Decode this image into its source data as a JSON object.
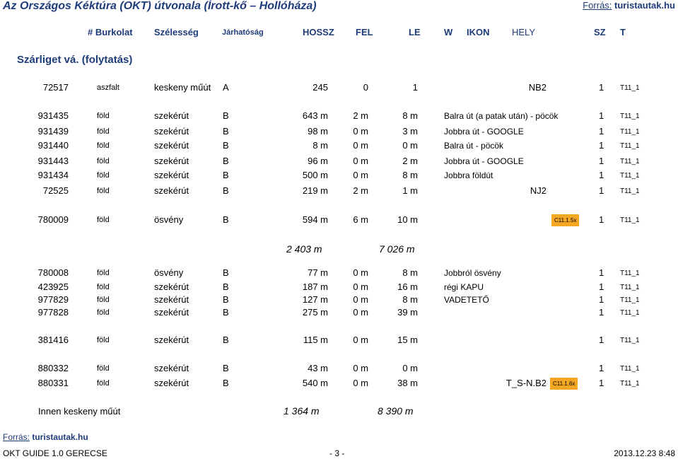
{
  "header": {
    "title": "Az Országos Kéktúra (OKT) útvonala (Írott-kő – Hollóháza)",
    "source_label": "Forrás:",
    "source_value": "turistautak.hu"
  },
  "columns": {
    "id": "# Burkolat",
    "width": "Szélesség",
    "pass": "Járhatóság",
    "len": "HOSSZ",
    "up": "FEL",
    "down": "LE",
    "w": "W",
    "ikon": "IKON",
    "hely": "HELY",
    "sz": "SZ",
    "t": "T"
  },
  "section_title": "Szárliget vá. (folytatás)",
  "rows": [
    {
      "id": "72517",
      "surf": "aszfalt",
      "width": "keskeny műút",
      "pass": "A",
      "len": "245",
      "up": "0",
      "down": "1",
      "desc": "",
      "descR": "NB2",
      "badge": "",
      "sz": "1",
      "t": "T11_1"
    },
    {
      "id": "931435",
      "surf": "föld",
      "width": "szekérút",
      "pass": "B",
      "len": "643 m",
      "up": "2 m",
      "down": "8 m",
      "desc": "Balra út (a patak után) - pöcök",
      "descR": "",
      "badge": "",
      "sz": "1",
      "t": "T11_1"
    },
    {
      "id": "931439",
      "surf": "föld",
      "width": "szekérút",
      "pass": "B",
      "len": "98 m",
      "up": "0 m",
      "down": "3 m",
      "desc": "Jobbra út - GOOGLE",
      "descR": "",
      "badge": "",
      "sz": "1",
      "t": "T11_1"
    },
    {
      "id": "931440",
      "surf": "föld",
      "width": "szekérút",
      "pass": "B",
      "len": "8 m",
      "up": "0 m",
      "down": "0 m",
      "desc": "Balra út - pöcök",
      "descR": "",
      "badge": "",
      "sz": "1",
      "t": "T11_1"
    },
    {
      "id": "931443",
      "surf": "föld",
      "width": "szekérút",
      "pass": "B",
      "len": "96 m",
      "up": "0 m",
      "down": "2 m",
      "desc": "Jobbra út - GOOGLE",
      "descR": "",
      "badge": "",
      "sz": "1",
      "t": "T11_1"
    },
    {
      "id": "931434",
      "surf": "föld",
      "width": "szekérút",
      "pass": "B",
      "len": "500 m",
      "up": "0 m",
      "down": "8 m",
      "desc": "Jobbra földút",
      "descR": "",
      "badge": "",
      "sz": "1",
      "t": "T11_1"
    },
    {
      "id": "72525",
      "surf": "föld",
      "width": "szekérút",
      "pass": "B",
      "len": "219 m",
      "up": "2 m",
      "down": "1 m",
      "desc": "",
      "descR": "NJ2",
      "badge": "",
      "sz": "1",
      "t": "T11_1"
    },
    {
      "id": "780009",
      "surf": "föld",
      "width": "ösvény",
      "pass": "B",
      "len": "594 m",
      "up": "6 m",
      "down": "10 m",
      "desc": "",
      "descR": "",
      "badge": "C11.1.5x",
      "sz": "1",
      "t": "T11_1"
    },
    {
      "id": "780008",
      "surf": "föld",
      "width": "ösvény",
      "pass": "B",
      "len": "77 m",
      "up": "0 m",
      "down": "8 m",
      "desc": "Jobbról ösvény",
      "descR": "",
      "badge": "",
      "sz": "1",
      "t": "T11_1"
    },
    {
      "id": "423925",
      "surf": "föld",
      "width": "szekérút",
      "pass": "B",
      "len": "187 m",
      "up": "0 m",
      "down": "16 m",
      "desc": "régi KAPU",
      "descR": "",
      "badge": "",
      "sz": "1",
      "t": "T11_1"
    },
    {
      "id": "977829",
      "surf": "föld",
      "width": "szekérút",
      "pass": "B",
      "len": "127 m",
      "up": "0 m",
      "down": "8 m",
      "desc": "VADETETŐ",
      "descR": "",
      "badge": "",
      "sz": "1",
      "t": "T11_1"
    },
    {
      "id": "977828",
      "surf": "föld",
      "width": "szekérút",
      "pass": "B",
      "len": "275 m",
      "up": "0 m",
      "down": "39 m",
      "desc": "",
      "descR": "",
      "badge": "",
      "sz": "1",
      "t": "T11_1"
    },
    {
      "id": "381416",
      "surf": "föld",
      "width": "szekérút",
      "pass": "B",
      "len": "115 m",
      "up": "0 m",
      "down": "15 m",
      "desc": "",
      "descR": "",
      "badge": "",
      "sz": "1",
      "t": "T11_1"
    },
    {
      "id": "880332",
      "surf": "föld",
      "width": "szekérút",
      "pass": "B",
      "len": "43 m",
      "up": "0 m",
      "down": "0 m",
      "desc": "",
      "descR": "",
      "badge": "",
      "sz": "1",
      "t": "T11_1"
    },
    {
      "id": "880331",
      "surf": "föld",
      "width": "szekérút",
      "pass": "B",
      "len": "540 m",
      "up": "0 m",
      "down": "38 m",
      "desc": "",
      "descR": "T_S-N.B2",
      "badge": "C11.1.6x",
      "sz": "1",
      "t": "T11_1"
    }
  ],
  "subtotal": {
    "len": "2 403 m",
    "elev": "7 026 m"
  },
  "final": {
    "label": "Innen keskeny műút",
    "len": "1 364 m",
    "elev": "8 390 m"
  },
  "footer": {
    "source_label": "Forrás:",
    "source_value": "turistautak.hu",
    "left": "OKT GUIDE 1.0  GERECSE",
    "center": "- 3 -",
    "right": "2013.12.23  8:48"
  },
  "colors": {
    "heading": "#1f3c7a",
    "badge": "#f5a623"
  }
}
